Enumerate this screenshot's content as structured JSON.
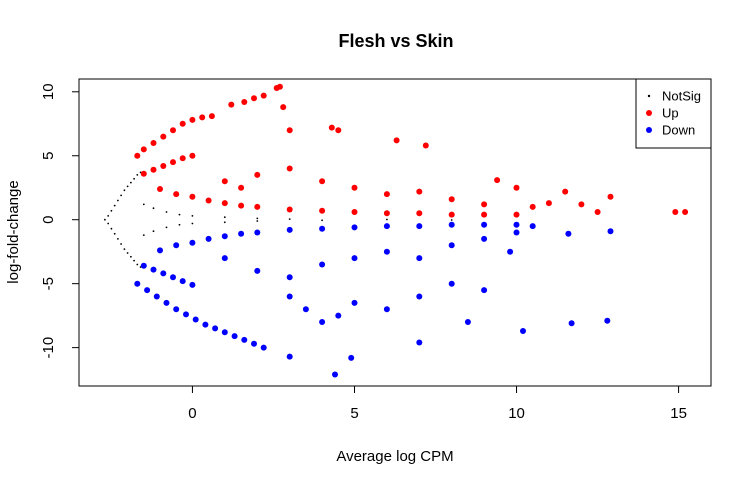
{
  "chart_data": {
    "type": "scatter",
    "title": "Flesh vs Skin",
    "xlabel": "Average log CPM",
    "ylabel": "log-fold-change",
    "xlim": [
      -3.5,
      16
    ],
    "ylim": [
      -13,
      11
    ],
    "xticks": [
      0,
      5,
      10,
      15
    ],
    "yticks": [
      -10,
      -5,
      0,
      5,
      10
    ],
    "xtick_labels": [
      "0",
      "5",
      "10",
      "15"
    ],
    "ytick_labels": [
      "-10",
      "-5",
      "0",
      "5",
      "10"
    ],
    "grid": false,
    "legend": {
      "position": "top-right",
      "entries": [
        {
          "label": "NotSig",
          "color": "#000000",
          "marker": "dot"
        },
        {
          "label": "Up",
          "color": "#ff0000",
          "marker": "circle"
        },
        {
          "label": "Down",
          "color": "#0000ff",
          "marker": "circle"
        }
      ]
    },
    "series": [
      {
        "name": "NotSig",
        "color": "#000000",
        "points": [
          [
            -2.7,
            0.0
          ],
          [
            -2.6,
            0.3
          ],
          [
            -2.6,
            -0.3
          ],
          [
            -2.5,
            0.7
          ],
          [
            -2.5,
            -0.7
          ],
          [
            -2.4,
            1.1
          ],
          [
            -2.4,
            -1.1
          ],
          [
            -2.3,
            1.5
          ],
          [
            -2.3,
            -1.5
          ],
          [
            -2.2,
            1.9
          ],
          [
            -2.2,
            -1.9
          ],
          [
            -2.1,
            2.3
          ],
          [
            -2.1,
            -2.3
          ],
          [
            -2.0,
            2.6
          ],
          [
            -2.0,
            -2.6
          ],
          [
            -1.9,
            2.9
          ],
          [
            -1.9,
            -2.9
          ],
          [
            -1.8,
            3.2
          ],
          [
            -1.8,
            -3.2
          ],
          [
            -1.7,
            3.5
          ],
          [
            -1.7,
            -3.5
          ],
          [
            -1.6,
            3.7
          ],
          [
            -1.6,
            -3.7
          ],
          [
            -1.5,
            1.2
          ],
          [
            -1.5,
            -1.2
          ],
          [
            -1.2,
            0.9
          ],
          [
            -1.2,
            -0.9
          ],
          [
            -0.8,
            0.6
          ],
          [
            -0.8,
            -0.6
          ],
          [
            -0.4,
            0.4
          ],
          [
            -0.4,
            -0.4
          ],
          [
            0.0,
            0.3
          ],
          [
            0.0,
            -0.3
          ],
          [
            1.0,
            0.2
          ],
          [
            1.0,
            -0.2
          ],
          [
            2.0,
            0.1
          ],
          [
            2.0,
            -0.1
          ],
          [
            3.0,
            0.05
          ],
          [
            4.0,
            -0.05
          ],
          [
            6.0,
            0.02
          ],
          [
            8.0,
            -0.02
          ]
        ]
      },
      {
        "name": "Up",
        "color": "#ff0000",
        "points": [
          [
            -1.7,
            5.0
          ],
          [
            -1.5,
            5.5
          ],
          [
            -1.2,
            6.0
          ],
          [
            -0.9,
            6.5
          ],
          [
            -0.6,
            7.0
          ],
          [
            -0.3,
            7.5
          ],
          [
            0.0,
            7.8
          ],
          [
            0.3,
            8.0
          ],
          [
            0.6,
            8.1
          ],
          [
            -1.5,
            3.6
          ],
          [
            -1.2,
            3.9
          ],
          [
            -0.9,
            4.2
          ],
          [
            -0.6,
            4.5
          ],
          [
            -0.3,
            4.8
          ],
          [
            0.0,
            5.0
          ],
          [
            -1.0,
            2.4
          ],
          [
            -0.5,
            2.0
          ],
          [
            0.0,
            1.8
          ],
          [
            0.5,
            1.5
          ],
          [
            1.0,
            1.3
          ],
          [
            1.5,
            1.1
          ],
          [
            2.0,
            1.0
          ],
          [
            3.0,
            0.8
          ],
          [
            4.0,
            0.7
          ],
          [
            5.0,
            0.6
          ],
          [
            6.0,
            0.5
          ],
          [
            7.0,
            0.5
          ],
          [
            8.0,
            0.4
          ],
          [
            9.0,
            0.4
          ],
          [
            10.0,
            0.4
          ],
          [
            1.0,
            3.0
          ],
          [
            1.5,
            2.5
          ],
          [
            2.0,
            3.5
          ],
          [
            3.0,
            4.0
          ],
          [
            4.0,
            3.0
          ],
          [
            5.0,
            2.5
          ],
          [
            6.0,
            2.0
          ],
          [
            7.0,
            2.2
          ],
          [
            8.0,
            1.6
          ],
          [
            9.0,
            1.2
          ],
          [
            1.2,
            9.0
          ],
          [
            1.6,
            9.2
          ],
          [
            1.9,
            9.5
          ],
          [
            2.2,
            9.7
          ],
          [
            2.6,
            10.3
          ],
          [
            2.7,
            10.4
          ],
          [
            2.8,
            8.8
          ],
          [
            3.0,
            7.0
          ],
          [
            4.3,
            7.2
          ],
          [
            4.5,
            7.0
          ],
          [
            6.3,
            6.2
          ],
          [
            7.2,
            5.8
          ],
          [
            9.4,
            3.1
          ],
          [
            10.0,
            2.5
          ],
          [
            10.5,
            1.0
          ],
          [
            11.0,
            1.3
          ],
          [
            11.5,
            2.2
          ],
          [
            12.0,
            1.2
          ],
          [
            12.5,
            0.6
          ],
          [
            12.9,
            1.8
          ],
          [
            14.9,
            0.6
          ],
          [
            15.2,
            0.6
          ]
        ]
      },
      {
        "name": "Down",
        "color": "#0000ff",
        "points": [
          [
            -1.7,
            -5.0
          ],
          [
            -1.4,
            -5.5
          ],
          [
            -1.1,
            -6.0
          ],
          [
            -0.8,
            -6.5
          ],
          [
            -0.5,
            -7.0
          ],
          [
            -0.2,
            -7.4
          ],
          [
            0.1,
            -7.8
          ],
          [
            0.4,
            -8.2
          ],
          [
            0.7,
            -8.5
          ],
          [
            1.0,
            -8.8
          ],
          [
            1.3,
            -9.1
          ],
          [
            1.6,
            -9.4
          ],
          [
            1.9,
            -9.7
          ],
          [
            2.2,
            -10.0
          ],
          [
            -1.5,
            -3.6
          ],
          [
            -1.2,
            -3.9
          ],
          [
            -0.9,
            -4.2
          ],
          [
            -0.6,
            -4.5
          ],
          [
            -0.3,
            -4.8
          ],
          [
            0.0,
            -5.1
          ],
          [
            -1.0,
            -2.4
          ],
          [
            -0.5,
            -2.0
          ],
          [
            0.0,
            -1.8
          ],
          [
            0.5,
            -1.5
          ],
          [
            1.0,
            -1.3
          ],
          [
            1.5,
            -1.1
          ],
          [
            2.0,
            -1.0
          ],
          [
            3.0,
            -0.8
          ],
          [
            4.0,
            -0.7
          ],
          [
            5.0,
            -0.6
          ],
          [
            6.0,
            -0.5
          ],
          [
            7.0,
            -0.5
          ],
          [
            8.0,
            -0.4
          ],
          [
            9.0,
            -0.4
          ],
          [
            10.0,
            -0.4
          ],
          [
            1.0,
            -3.0
          ],
          [
            2.0,
            -4.0
          ],
          [
            3.0,
            -4.5
          ],
          [
            4.0,
            -3.5
          ],
          [
            5.0,
            -3.0
          ],
          [
            6.0,
            -2.5
          ],
          [
            7.0,
            -3.0
          ],
          [
            8.0,
            -2.0
          ],
          [
            9.0,
            -1.5
          ],
          [
            10.0,
            -1.0
          ],
          [
            3.0,
            -6.0
          ],
          [
            3.5,
            -7.0
          ],
          [
            4.0,
            -8.0
          ],
          [
            4.5,
            -7.5
          ],
          [
            5.0,
            -6.5
          ],
          [
            6.0,
            -7.0
          ],
          [
            7.0,
            -6.0
          ],
          [
            8.0,
            -5.0
          ],
          [
            9.0,
            -5.5
          ],
          [
            3.0,
            -10.7
          ],
          [
            4.4,
            -12.1
          ],
          [
            4.9,
            -10.8
          ],
          [
            7.0,
            -9.6
          ],
          [
            8.5,
            -8.0
          ],
          [
            10.2,
            -8.7
          ],
          [
            11.7,
            -8.1
          ],
          [
            12.8,
            -7.9
          ],
          [
            12.9,
            -0.9
          ],
          [
            11.6,
            -1.1
          ],
          [
            10.5,
            -0.5
          ],
          [
            9.8,
            -2.5
          ]
        ]
      }
    ]
  }
}
